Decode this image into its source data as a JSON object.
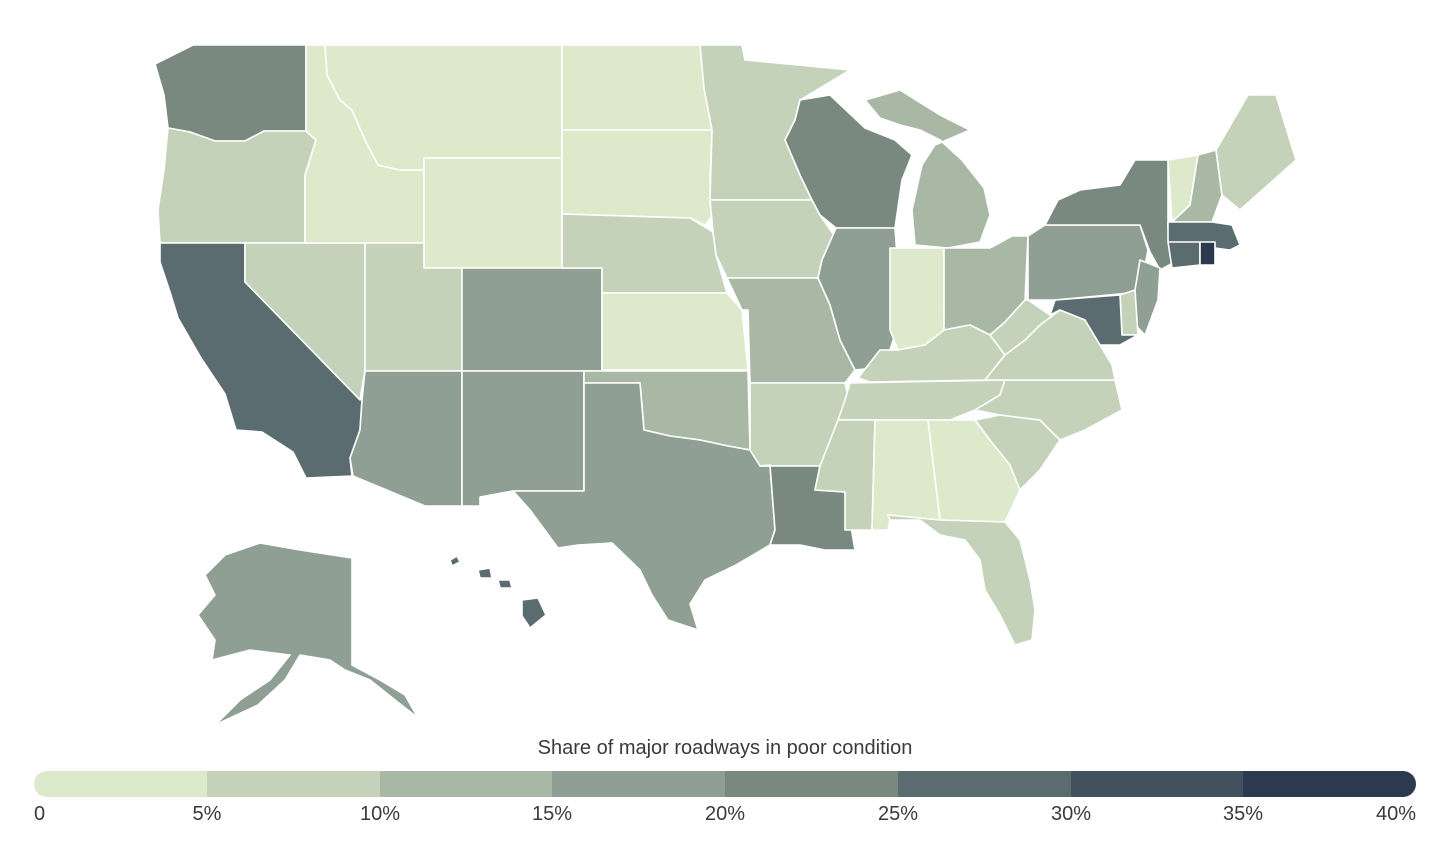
{
  "legend": {
    "title": "Share of major roadways in poor condition",
    "ticks": [
      "0",
      "5%",
      "10%",
      "15%",
      "20%",
      "25%",
      "30%",
      "35%",
      "40%"
    ],
    "colors": [
      "#dde9cb",
      "#c4d2b9",
      "#a9b8a4",
      "#909f94",
      "#798980",
      "#5b6c70",
      "#43505e",
      "#2c3a4f"
    ]
  },
  "states": {
    "WA": {
      "bin": 4
    },
    "OR": {
      "bin": 1
    },
    "CA": {
      "bin": 5
    },
    "NV": {
      "bin": 1
    },
    "ID": {
      "bin": 0
    },
    "MT": {
      "bin": 0
    },
    "WY": {
      "bin": 0
    },
    "UT": {
      "bin": 1
    },
    "CO": {
      "bin": 3
    },
    "AZ": {
      "bin": 3
    },
    "NM": {
      "bin": 3
    },
    "ND": {
      "bin": 0
    },
    "SD": {
      "bin": 0
    },
    "NE": {
      "bin": 1
    },
    "KS": {
      "bin": 0
    },
    "OK": {
      "bin": 2
    },
    "TX": {
      "bin": 3
    },
    "MN": {
      "bin": 1
    },
    "IA": {
      "bin": 1
    },
    "MO": {
      "bin": 2
    },
    "AR": {
      "bin": 1
    },
    "LA": {
      "bin": 4
    },
    "WI": {
      "bin": 4
    },
    "IL": {
      "bin": 3
    },
    "MI": {
      "bin": 2
    },
    "IN": {
      "bin": 0
    },
    "OH": {
      "bin": 2
    },
    "KY": {
      "bin": 1
    },
    "TN": {
      "bin": 1
    },
    "MS": {
      "bin": 1
    },
    "AL": {
      "bin": 0
    },
    "GA": {
      "bin": 0
    },
    "FL": {
      "bin": 1
    },
    "SC": {
      "bin": 1
    },
    "NC": {
      "bin": 1
    },
    "VA": {
      "bin": 1
    },
    "WV": {
      "bin": 1
    },
    "PA": {
      "bin": 3
    },
    "NY": {
      "bin": 4
    },
    "VT": {
      "bin": 0
    },
    "NH": {
      "bin": 2
    },
    "ME": {
      "bin": 1
    },
    "MA": {
      "bin": 5
    },
    "RI": {
      "bin": 7
    },
    "CT": {
      "bin": 5
    },
    "NJ": {
      "bin": 3
    },
    "DE": {
      "bin": 1
    },
    "MD": {
      "bin": 5
    },
    "AK": {
      "bin": 3
    },
    "HI": {
      "bin": 5
    }
  }
}
